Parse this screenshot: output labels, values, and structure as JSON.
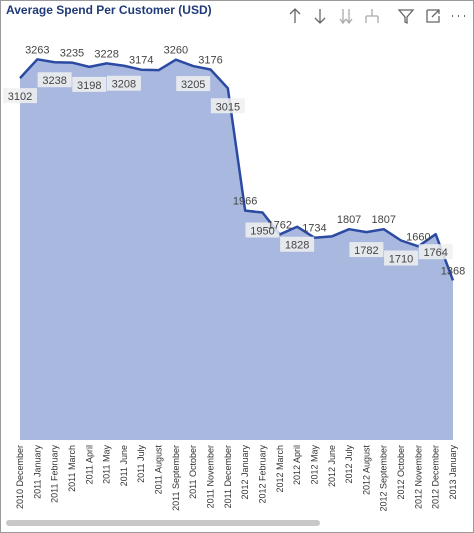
{
  "chart_data": {
    "type": "area",
    "title": "Average Spend Per Customer (USD)",
    "categories": [
      "2010 December",
      "2011 January",
      "2011 February",
      "2011 March",
      "2011 April",
      "2011 May",
      "2011 June",
      "2011 July",
      "2011 August",
      "2011 September",
      "2011 October",
      "2011 November",
      "2011 December",
      "2012 January",
      "2012 February",
      "2012 March",
      "2012 April",
      "2012 May",
      "2012 June",
      "2012 July",
      "2012 August",
      "2012 September",
      "2012 October",
      "2012 November",
      "2012 December",
      "2013 January"
    ],
    "values": [
      3102,
      3263,
      3238,
      3235,
      3198,
      3228,
      3208,
      3174,
      3170,
      3260,
      3205,
      3176,
      3015,
      1966,
      1950,
      1762,
      1828,
      1734,
      1745,
      1807,
      1782,
      1807,
      1710,
      1660,
      1764,
      1368
    ],
    "value_labels": [
      "3102",
      "3263",
      "3238",
      "3235",
      "3198",
      "3228",
      "3208",
      "3174",
      null,
      "3260",
      "3205",
      "3176",
      "3015",
      "1966",
      "1950",
      "1762",
      "1828",
      "1734",
      null,
      "1807",
      "1782",
      "1807",
      "1710",
      "1660",
      "1764",
      "1368"
    ],
    "color": "#2b4ba3",
    "fill": "#a9b8df",
    "ylim": [
      0,
      3600
    ]
  }
}
